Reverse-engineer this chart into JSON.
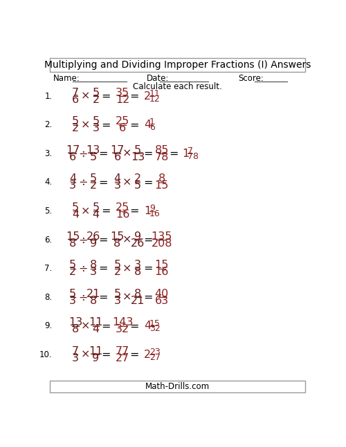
{
  "title": "Multiplying and Dividing Improper Fractions (I) Answers",
  "instruction": "Calculate each result.",
  "fraction_color": "#6b1a1a",
  "answer_color": "#8b2020",
  "footer": "Math-Drills.com",
  "problems": [
    {
      "num": "1.",
      "op": "×",
      "q_num1": "7",
      "q_den1": "6",
      "q_num2": "5",
      "q_den2": "2",
      "a_num": "35",
      "a_den": "12",
      "mixed": true,
      "whole": "2",
      "r_num": "11",
      "r_den": "12",
      "has_step": false
    },
    {
      "num": "2.",
      "op": "×",
      "q_num1": "5",
      "q_den1": "2",
      "q_num2": "5",
      "q_den2": "3",
      "a_num": "25",
      "a_den": "6",
      "mixed": true,
      "whole": "4",
      "r_num": "1",
      "r_den": "6",
      "has_step": false
    },
    {
      "num": "3.",
      "op": "÷",
      "q_num1": "17",
      "q_den1": "6",
      "q_num2": "13",
      "q_den2": "5",
      "step_num1": "17",
      "step_den1": "6",
      "step_num2": "5",
      "step_den2": "13",
      "a_num": "85",
      "a_den": "78",
      "mixed": true,
      "whole": "1",
      "r_num": "7",
      "r_den": "78",
      "has_step": true
    },
    {
      "num": "4.",
      "op": "÷",
      "q_num1": "4",
      "q_den1": "3",
      "q_num2": "5",
      "q_den2": "2",
      "step_num1": "4",
      "step_den1": "3",
      "step_num2": "2",
      "step_den2": "5",
      "a_num": "8",
      "a_den": "15",
      "mixed": false,
      "whole": "",
      "r_num": "",
      "r_den": "",
      "has_step": true
    },
    {
      "num": "5.",
      "op": "×",
      "q_num1": "5",
      "q_den1": "4",
      "q_num2": "5",
      "q_den2": "4",
      "a_num": "25",
      "a_den": "16",
      "mixed": true,
      "whole": "1",
      "r_num": "9",
      "r_den": "16",
      "has_step": false
    },
    {
      "num": "6.",
      "op": "÷",
      "q_num1": "15",
      "q_den1": "8",
      "q_num2": "26",
      "q_den2": "9",
      "step_num1": "15",
      "step_den1": "8",
      "step_num2": "9",
      "step_den2": "26",
      "a_num": "135",
      "a_den": "208",
      "mixed": false,
      "whole": "",
      "r_num": "",
      "r_den": "",
      "has_step": true
    },
    {
      "num": "7.",
      "op": "÷",
      "q_num1": "5",
      "q_den1": "2",
      "q_num2": "8",
      "q_den2": "3",
      "step_num1": "5",
      "step_den1": "2",
      "step_num2": "3",
      "step_den2": "8",
      "a_num": "15",
      "a_den": "16",
      "mixed": false,
      "whole": "",
      "r_num": "",
      "r_den": "",
      "has_step": true
    },
    {
      "num": "8.",
      "op": "÷",
      "q_num1": "5",
      "q_den1": "3",
      "q_num2": "21",
      "q_den2": "8",
      "step_num1": "5",
      "step_den1": "3",
      "step_num2": "8",
      "step_den2": "21",
      "a_num": "40",
      "a_den": "63",
      "mixed": false,
      "whole": "",
      "r_num": "",
      "r_den": "",
      "has_step": true
    },
    {
      "num": "9.",
      "op": "×",
      "q_num1": "13",
      "q_den1": "8",
      "q_num2": "11",
      "q_den2": "4",
      "a_num": "143",
      "a_den": "32",
      "mixed": true,
      "whole": "4",
      "r_num": "15",
      "r_den": "32",
      "has_step": false
    },
    {
      "num": "10.",
      "op": "×",
      "q_num1": "7",
      "q_den1": "3",
      "q_num2": "11",
      "q_den2": "9",
      "a_num": "77",
      "a_den": "27",
      "mixed": true,
      "whole": "2",
      "r_num": "23",
      "r_den": "27",
      "has_step": false
    }
  ]
}
